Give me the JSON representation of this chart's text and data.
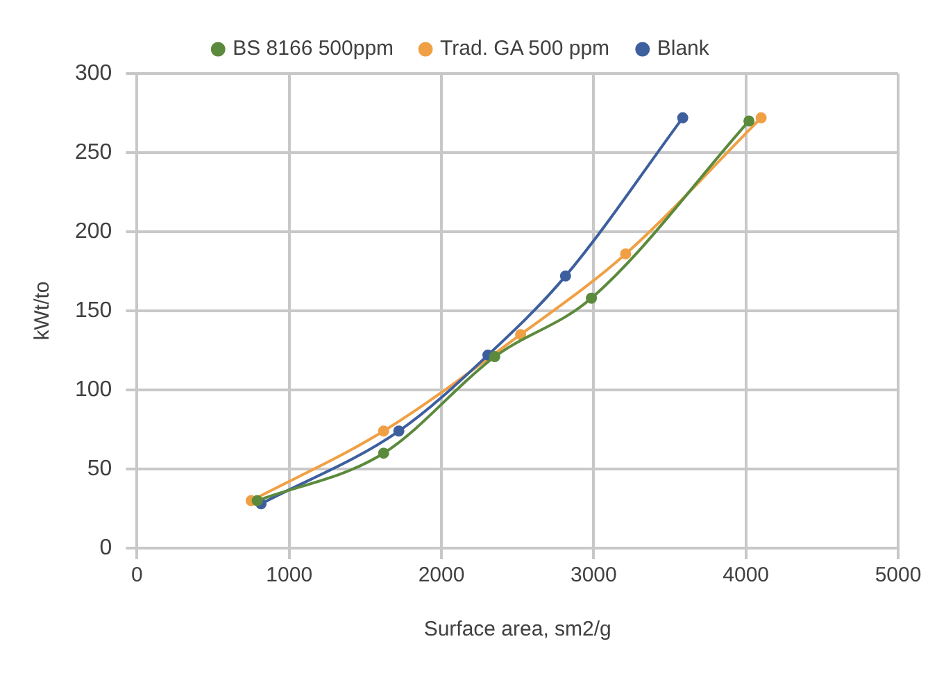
{
  "chart_data": {
    "type": "line",
    "xlabel": "Surface area, sm2/g",
    "ylabel": "kWt/to",
    "series": [
      {
        "name": "BS 8166 500ppm",
        "color": "#5b8a3c",
        "x": [
          790,
          1620,
          2350,
          2985,
          4020
        ],
        "values": [
          30,
          60,
          121,
          158,
          270
        ]
      },
      {
        "name": "Trad. GA 500 ppm",
        "color": "#f0a044",
        "x": [
          750,
          1620,
          2520,
          3210,
          4100
        ],
        "values": [
          30,
          74,
          135,
          186,
          272
        ]
      },
      {
        "name": "Blank",
        "color": "#3d5f9e",
        "x": [
          815,
          1720,
          2305,
          2815,
          3585
        ],
        "values": [
          28,
          74,
          122,
          172,
          272
        ]
      }
    ],
    "xlim": [
      0,
      5000
    ],
    "xticks": [
      0,
      1000,
      2000,
      3000,
      4000,
      5000
    ],
    "ylim": [
      0,
      300
    ],
    "yticks": [
      0,
      50,
      100,
      150,
      200,
      250,
      300
    ],
    "grid": true,
    "legend": "top",
    "marker": "circle",
    "line_style": "solid"
  }
}
